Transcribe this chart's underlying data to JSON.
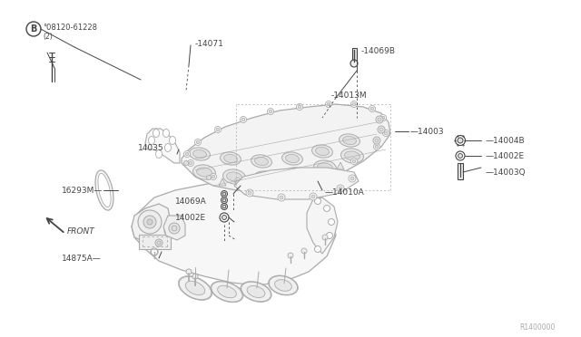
{
  "bg_color": "#ffffff",
  "line_color": "#aaaaaa",
  "dark_line": "#444444",
  "med_line": "#777777",
  "labels": {
    "B_bolt": "°08120-61228",
    "B_bolt2": "（2）",
    "l14071": "-14071",
    "l14069B": "-14069B",
    "l14013M": "-14013M",
    "l16293M": "16293M—",
    "l14875A": "14875A—",
    "l14069A": "14069A",
    "l14002E_left": "14002E",
    "l14035": "14035",
    "l14010A": "—14010A",
    "l14004B": "—14004B",
    "l14002E_right": "—14002E",
    "l14003Q": "—14003Q",
    "l14003": "—14003",
    "front": "FRONT",
    "ref": "R1400000"
  },
  "font_size": 6.5,
  "small_font": 5.5
}
